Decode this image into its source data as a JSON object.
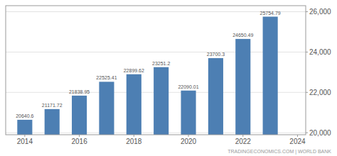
{
  "chart_data": {
    "type": "bar",
    "x": [
      2014,
      2015,
      2016,
      2017,
      2018,
      2019,
      2020,
      2021,
      2022,
      2023
    ],
    "values": [
      20640.6,
      21171.72,
      21838.95,
      22525.41,
      22899.62,
      23251.2,
      22090.01,
      23700.3,
      24650.49,
      25754.79
    ],
    "color": "#4d7fb3",
    "xlim": [
      2013.3,
      2024.3
    ],
    "xticks": [
      2014,
      2016,
      2018,
      2020,
      2022,
      2024
    ],
    "ylim": [
      19900,
      26300
    ],
    "yticks": [
      {
        "value": 20000,
        "label": "20,000"
      },
      {
        "value": 22000,
        "label": "22,000"
      },
      {
        "value": 24000,
        "label": "24,000"
      },
      {
        "value": 26000,
        "label": "26,000"
      }
    ],
    "grid": true,
    "data_labels": true,
    "annotations": [
      "TRADINGECONOMICS.COM | WORLD BANK"
    ]
  }
}
